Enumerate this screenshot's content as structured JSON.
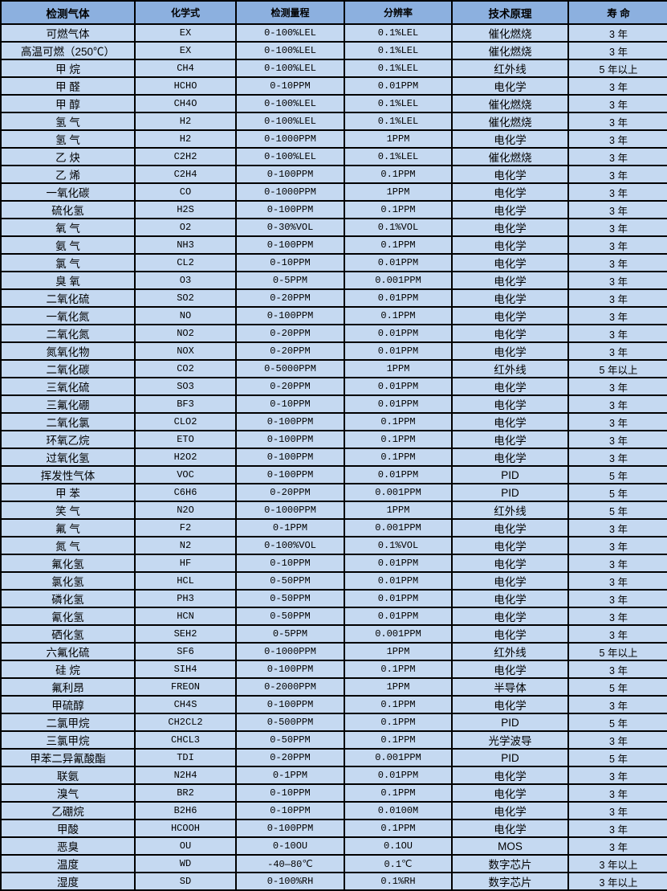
{
  "colors": {
    "header_bg": "#8CB0DF",
    "row_bg": "#C5D9F1",
    "border": "#000000",
    "text": "#000000"
  },
  "table": {
    "headers": [
      "检测气体",
      "化学式",
      "检测量程",
      "分辨率",
      "技术原理",
      "寿 命"
    ],
    "fields": [
      "gas",
      "formula",
      "range",
      "resolution",
      "principle",
      "lifespan"
    ],
    "rows": [
      {
        "gas": "可燃气体",
        "formula": "EX",
        "range": "0-100%LEL",
        "resolution": "0.1%LEL",
        "principle": "催化燃烧",
        "lifespan": "3 年"
      },
      {
        "gas": "高温可燃（250℃）",
        "formula": "EX",
        "range": "0-100%LEL",
        "resolution": "0.1%LEL",
        "principle": "催化燃烧",
        "lifespan": "3 年"
      },
      {
        "gas": "甲 烷",
        "formula": "CH4",
        "range": "0-100%LEL",
        "resolution": "0.1%LEL",
        "principle": "红外线",
        "lifespan": "5 年以上"
      },
      {
        "gas": "甲 醛",
        "formula": "HCHO",
        "range": "0-10PPM",
        "resolution": "0.01PPM",
        "principle": "电化学",
        "lifespan": "3 年"
      },
      {
        "gas": "甲 醇",
        "formula": "CH4O",
        "range": "0-100%LEL",
        "resolution": "0.1%LEL",
        "principle": "催化燃烧",
        "lifespan": "3 年"
      },
      {
        "gas": "氢 气",
        "formula": "H2",
        "range": "0-100%LEL",
        "resolution": "0.1%LEL",
        "principle": "催化燃烧",
        "lifespan": "3 年"
      },
      {
        "gas": "氢 气",
        "formula": "H2",
        "range": "0-1000PPM",
        "resolution": "1PPM",
        "principle": "电化学",
        "lifespan": "3 年"
      },
      {
        "gas": "乙 炔",
        "formula": "C2H2",
        "range": "0-100%LEL",
        "resolution": "0.1%LEL",
        "principle": "催化燃烧",
        "lifespan": "3 年"
      },
      {
        "gas": "乙 烯",
        "formula": "C2H4",
        "range": "0-100PPM",
        "resolution": "0.1PPM",
        "principle": "电化学",
        "lifespan": "3 年"
      },
      {
        "gas": "一氧化碳",
        "formula": "CO",
        "range": "0-1000PPM",
        "resolution": "1PPM",
        "principle": "电化学",
        "lifespan": "3 年"
      },
      {
        "gas": "硫化氢",
        "formula": "H2S",
        "range": "0-100PPM",
        "resolution": "0.1PPM",
        "principle": "电化学",
        "lifespan": "3 年"
      },
      {
        "gas": "氧 气",
        "formula": "O2",
        "range": "0-30%VOL",
        "resolution": "0.1%VOL",
        "principle": "电化学",
        "lifespan": "3 年"
      },
      {
        "gas": "氨 气",
        "formula": "NH3",
        "range": "0-100PPM",
        "resolution": "0.1PPM",
        "principle": "电化学",
        "lifespan": "3 年"
      },
      {
        "gas": "氯 气",
        "formula": "CL2",
        "range": "0-10PPM",
        "resolution": "0.01PPM",
        "principle": "电化学",
        "lifespan": "3 年"
      },
      {
        "gas": "臭 氧",
        "formula": "O3",
        "range": "0-5PPM",
        "resolution": "0.001PPM",
        "principle": "电化学",
        "lifespan": "3 年"
      },
      {
        "gas": "二氧化硫",
        "formula": "SO2",
        "range": "0-20PPM",
        "resolution": "0.01PPM",
        "principle": "电化学",
        "lifespan": "3 年"
      },
      {
        "gas": "一氧化氮",
        "formula": "NO",
        "range": "0-100PPM",
        "resolution": "0.1PPM",
        "principle": "电化学",
        "lifespan": "3 年"
      },
      {
        "gas": "二氧化氮",
        "formula": "NO2",
        "range": "0-20PPM",
        "resolution": "0.01PPM",
        "principle": "电化学",
        "lifespan": "3 年"
      },
      {
        "gas": "氮氧化物",
        "formula": "NOX",
        "range": "0-20PPM",
        "resolution": "0.01PPM",
        "principle": "电化学",
        "lifespan": "3 年"
      },
      {
        "gas": "二氧化碳",
        "formula": "CO2",
        "range": "0-5000PPM",
        "resolution": "1PPM",
        "principle": "红外线",
        "lifespan": "5 年以上"
      },
      {
        "gas": "三氧化硫",
        "formula": "SO3",
        "range": "0-20PPM",
        "resolution": "0.01PPM",
        "principle": "电化学",
        "lifespan": "3 年"
      },
      {
        "gas": "三氟化硼",
        "formula": "BF3",
        "range": "0-10PPM",
        "resolution": "0.01PPM",
        "principle": "电化学",
        "lifespan": "3 年"
      },
      {
        "gas": "二氧化氯",
        "formula": "CLO2",
        "range": "0-100PPM",
        "resolution": "0.1PPM",
        "principle": "电化学",
        "lifespan": "3 年"
      },
      {
        "gas": "环氧乙烷",
        "formula": "ETO",
        "range": "0-100PPM",
        "resolution": "0.1PPM",
        "principle": "电化学",
        "lifespan": "3 年"
      },
      {
        "gas": "过氧化氢",
        "formula": "H2O2",
        "range": "0-100PPM",
        "resolution": "0.1PPM",
        "principle": "电化学",
        "lifespan": "3 年"
      },
      {
        "gas": "挥发性气体",
        "formula": "VOC",
        "range": "0-100PPM",
        "resolution": "0.01PPM",
        "principle": "PID",
        "lifespan": "5 年"
      },
      {
        "gas": "甲 苯",
        "formula": "C6H6",
        "range": "0-20PPM",
        "resolution": "0.001PPM",
        "principle": "PID",
        "lifespan": "5 年"
      },
      {
        "gas": "笑 气",
        "formula": "N2O",
        "range": "0-1000PPM",
        "resolution": "1PPM",
        "principle": "红外线",
        "lifespan": "5 年"
      },
      {
        "gas": "氟 气",
        "formula": "F2",
        "range": "0-1PPM",
        "resolution": "0.001PPM",
        "principle": "电化学",
        "lifespan": "3 年"
      },
      {
        "gas": "氮 气",
        "formula": "N2",
        "range": "0-100%VOL",
        "resolution": "0.1%VOL",
        "principle": "电化学",
        "lifespan": "3 年"
      },
      {
        "gas": "氟化氢",
        "formula": "HF",
        "range": "0-10PPM",
        "resolution": "0.01PPM",
        "principle": "电化学",
        "lifespan": "3 年"
      },
      {
        "gas": "氯化氢",
        "formula": "HCL",
        "range": "0-50PPM",
        "resolution": "0.01PPM",
        "principle": "电化学",
        "lifespan": "3 年"
      },
      {
        "gas": "磷化氢",
        "formula": "PH3",
        "range": "0-50PPM",
        "resolution": "0.01PPM",
        "principle": "电化学",
        "lifespan": "3 年"
      },
      {
        "gas": "氰化氢",
        "formula": "HCN",
        "range": "0-50PPM",
        "resolution": "0.01PPM",
        "principle": "电化学",
        "lifespan": "3 年"
      },
      {
        "gas": "硒化氢",
        "formula": "SEH2",
        "range": "0-5PPM",
        "resolution": "0.001PPM",
        "principle": "电化学",
        "lifespan": "3 年"
      },
      {
        "gas": "六氟化硫",
        "formula": "SF6",
        "range": "0-1000PPM",
        "resolution": "1PPM",
        "principle": "红外线",
        "lifespan": "5 年以上"
      },
      {
        "gas": "硅 烷",
        "formula": "SIH4",
        "range": "0-100PPM",
        "resolution": "0.1PPM",
        "principle": "电化学",
        "lifespan": "3 年"
      },
      {
        "gas": "氟利昂",
        "formula": "FREON",
        "range": "0-2000PPM",
        "resolution": "1PPM",
        "principle": "半导体",
        "lifespan": "5 年"
      },
      {
        "gas": "甲硫醇",
        "formula": "CH4S",
        "range": "0-100PPM",
        "resolution": "0.1PPM",
        "principle": "电化学",
        "lifespan": "3 年"
      },
      {
        "gas": "二氯甲烷",
        "formula": "CH2CL2",
        "range": "0-500PPM",
        "resolution": "0.1PPM",
        "principle": "PID",
        "lifespan": "5 年"
      },
      {
        "gas": "三氯甲烷",
        "formula": "CHCL3",
        "range": "0-50PPM",
        "resolution": "0.1PPM",
        "principle": "光学波导",
        "lifespan": "3 年"
      },
      {
        "gas": "甲苯二异氰酸酯",
        "formula": "TDI",
        "range": "0-20PPM",
        "resolution": "0.001PPM",
        "principle": "PID",
        "lifespan": "5 年"
      },
      {
        "gas": "联氨",
        "formula": "N2H4",
        "range": "0-1PPM",
        "resolution": "0.01PPM",
        "principle": "电化学",
        "lifespan": "3 年"
      },
      {
        "gas": "溴气",
        "formula": "BR2",
        "range": "0-10PPM",
        "resolution": "0.1PPM",
        "principle": "电化学",
        "lifespan": "3 年"
      },
      {
        "gas": "乙硼烷",
        "formula": "B2H6",
        "range": "0-10PPM",
        "resolution": "0.0100M",
        "principle": "电化学",
        "lifespan": "3 年"
      },
      {
        "gas": "甲酸",
        "formula": "HCOOH",
        "range": "0-100PPM",
        "resolution": "0.1PPM",
        "principle": "电化学",
        "lifespan": "3 年"
      },
      {
        "gas": "恶臭",
        "formula": "OU",
        "range": "0-10OU",
        "resolution": "0.1OU",
        "principle": "MOS",
        "lifespan": "3 年"
      },
      {
        "gas": "温度",
        "formula": "WD",
        "range": "-40—80℃",
        "resolution": "0.1℃",
        "principle": "数字芯片",
        "lifespan": "3 年以上"
      },
      {
        "gas": "湿度",
        "formula": "SD",
        "range": "0-100%RH",
        "resolution": "0.1%RH",
        "principle": "数字芯片",
        "lifespan": "3 年以上"
      }
    ]
  }
}
